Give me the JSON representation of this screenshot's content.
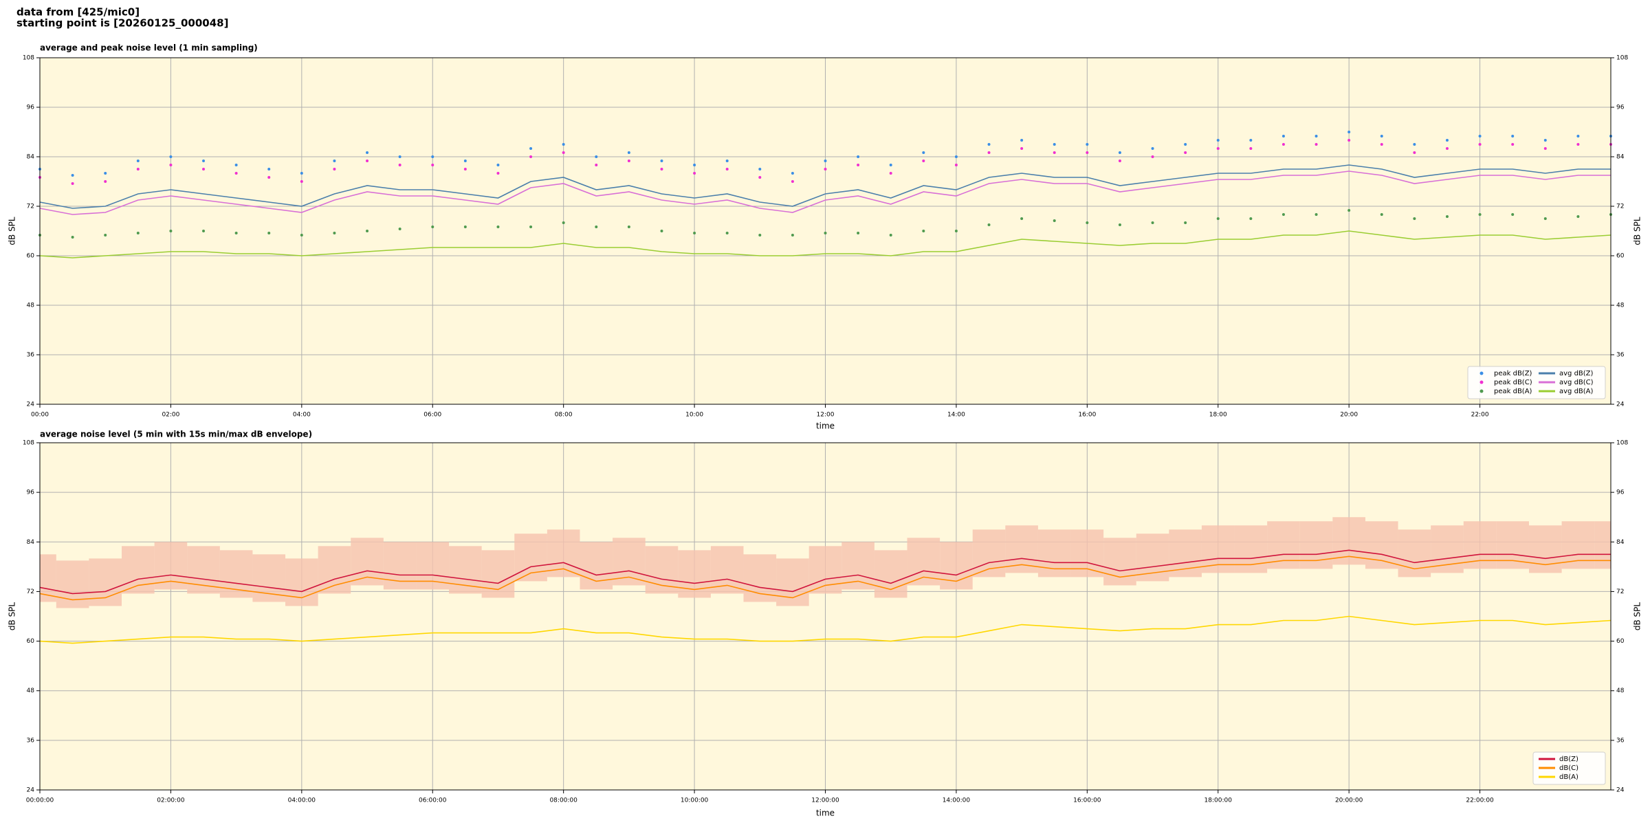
{
  "header": {
    "lines": [
      "data from [425/mic0]",
      "starting point is [20260125_000048]"
    ]
  },
  "chart_data": [
    {
      "type": "line",
      "title": "average and peak noise level (1 min sampling)",
      "x_label": "time",
      "y_label": "dB SPL",
      "x": [
        0,
        0.5,
        1,
        1.5,
        2,
        2.5,
        3,
        3.5,
        4,
        4.5,
        5,
        5.5,
        6,
        6.5,
        7,
        7.5,
        8,
        8.5,
        9,
        9.5,
        10,
        10.5,
        11,
        11.5,
        12,
        12.5,
        13,
        13.5,
        14,
        14.5,
        15,
        15.5,
        16,
        16.5,
        17,
        17.5,
        18,
        18.5,
        19,
        19.5,
        20,
        20.5,
        21,
        21.5,
        22,
        22.5,
        23,
        23.5,
        24
      ],
      "xlim": [
        0,
        24
      ],
      "xticks": [
        {
          "value": 0,
          "label": "00:00"
        },
        {
          "value": 2,
          "label": "02:00"
        },
        {
          "value": 4,
          "label": "04:00"
        },
        {
          "value": 6,
          "label": "06:00"
        },
        {
          "value": 8,
          "label": "08:00"
        },
        {
          "value": 10,
          "label": "10:00"
        },
        {
          "value": 12,
          "label": "12:00"
        },
        {
          "value": 14,
          "label": "14:00"
        },
        {
          "value": 16,
          "label": "16:00"
        },
        {
          "value": 18,
          "label": "18:00"
        },
        {
          "value": 20,
          "label": "20:00"
        },
        {
          "value": 22,
          "label": "22:00"
        }
      ],
      "ylim": [
        24,
        108
      ],
      "yticks": [
        24,
        36,
        48,
        60,
        72,
        84,
        96,
        108
      ],
      "grid": true,
      "legend": "lower right",
      "legend_columns": 2,
      "background": "#fff8dc",
      "series": [
        {
          "name": "peak dB(Z)",
          "kind": "scatter",
          "color": "#3a8ee6",
          "values": [
            81,
            79.5,
            80,
            83,
            84,
            83,
            82,
            81,
            80,
            83,
            85,
            84,
            84,
            83,
            82,
            86,
            87,
            84,
            85,
            83,
            82,
            83,
            81,
            80,
            83,
            84,
            82,
            85,
            84,
            87,
            88,
            87,
            87,
            85,
            86,
            87,
            88,
            88,
            89,
            89,
            90,
            89,
            87,
            88,
            89,
            89,
            88,
            89,
            89
          ]
        },
        {
          "name": "peak dB(C)",
          "kind": "scatter",
          "color": "#f02fd0",
          "values": [
            79,
            77.5,
            78,
            81,
            82,
            81,
            80,
            79,
            78,
            81,
            83,
            82,
            82,
            81,
            80,
            84,
            85,
            82,
            83,
            81,
            80,
            81,
            79,
            78,
            81,
            82,
            80,
            83,
            82,
            85,
            86,
            85,
            85,
            83,
            84,
            85,
            86,
            86,
            87,
            87,
            88,
            87,
            85,
            86,
            87,
            87,
            86,
            87,
            87
          ]
        },
        {
          "name": "peak dB(A)",
          "kind": "scatter",
          "color": "#4f9a4f",
          "values": [
            65,
            64.5,
            65,
            65.5,
            66,
            66,
            65.5,
            65.5,
            65,
            65.5,
            66,
            66.5,
            67,
            67,
            67,
            67,
            68,
            67,
            67,
            66,
            65.5,
            65.5,
            65,
            65,
            65.5,
            65.5,
            65,
            66,
            66,
            67.5,
            69,
            68.5,
            68,
            67.5,
            68,
            68,
            69,
            69,
            70,
            70,
            71,
            70,
            69,
            69.5,
            70,
            70,
            69,
            69.5,
            70
          ]
        },
        {
          "name": "avg dB(Z)",
          "kind": "line",
          "color": "#4a7fab",
          "values": [
            73,
            71.5,
            72,
            75,
            76,
            75,
            74,
            73,
            72,
            75,
            77,
            76,
            76,
            75,
            74,
            78,
            79,
            76,
            77,
            75,
            74,
            75,
            73,
            72,
            75,
            76,
            74,
            77,
            76,
            79,
            80,
            79,
            79,
            77,
            78,
            79,
            80,
            80,
            81,
            81,
            82,
            81,
            79,
            80,
            81,
            81,
            80,
            81,
            81
          ]
        },
        {
          "name": "avg dB(C)",
          "kind": "line",
          "color": "#d86fd6",
          "values": [
            71.5,
            70,
            70.5,
            73.5,
            74.5,
            73.5,
            72.5,
            71.5,
            70.5,
            73.5,
            75.5,
            74.5,
            74.5,
            73.5,
            72.5,
            76.5,
            77.5,
            74.5,
            75.5,
            73.5,
            72.5,
            73.5,
            71.5,
            70.5,
            73.5,
            74.5,
            72.5,
            75.5,
            74.5,
            77.5,
            78.5,
            77.5,
            77.5,
            75.5,
            76.5,
            77.5,
            78.5,
            78.5,
            79.5,
            79.5,
            80.5,
            79.5,
            77.5,
            78.5,
            79.5,
            79.5,
            78.5,
            79.5,
            79.5
          ]
        },
        {
          "name": "avg dB(A)",
          "kind": "line",
          "color": "#9acd32",
          "values": [
            60,
            59.5,
            60,
            60.5,
            61,
            61,
            60.5,
            60.5,
            60,
            60.5,
            61,
            61.5,
            62,
            62,
            62,
            62,
            63,
            62,
            62,
            61,
            60.5,
            60.5,
            60,
            60,
            60.5,
            60.5,
            60,
            61,
            61,
            62.5,
            64,
            63.5,
            63,
            62.5,
            63,
            63,
            64,
            64,
            65,
            65,
            66,
            65,
            64,
            64.5,
            65,
            65,
            64,
            64.5,
            65
          ]
        }
      ]
    },
    {
      "type": "line",
      "title": "average noise level (5 min with 15s min/max dB envelope)",
      "x_label": "time",
      "y_label": "dB SPL",
      "x": [
        0,
        0.5,
        1,
        1.5,
        2,
        2.5,
        3,
        3.5,
        4,
        4.5,
        5,
        5.5,
        6,
        6.5,
        7,
        7.5,
        8,
        8.5,
        9,
        9.5,
        10,
        10.5,
        11,
        11.5,
        12,
        12.5,
        13,
        13.5,
        14,
        14.5,
        15,
        15.5,
        16,
        16.5,
        17,
        17.5,
        18,
        18.5,
        19,
        19.5,
        20,
        20.5,
        21,
        21.5,
        22,
        22.5,
        23,
        23.5,
        24
      ],
      "xlim": [
        0,
        24
      ],
      "xticks": [
        {
          "value": 0,
          "label": "00:00:00"
        },
        {
          "value": 2,
          "label": "02:00:00"
        },
        {
          "value": 4,
          "label": "04:00:00"
        },
        {
          "value": 6,
          "label": "06:00:00"
        },
        {
          "value": 8,
          "label": "08:00:00"
        },
        {
          "value": 10,
          "label": "10:00:00"
        },
        {
          "value": 12,
          "label": "12:00:00"
        },
        {
          "value": 14,
          "label": "14:00:00"
        },
        {
          "value": 16,
          "label": "16:00:00"
        },
        {
          "value": 18,
          "label": "18:00:00"
        },
        {
          "value": 20,
          "label": "20:00:00"
        },
        {
          "value": 22,
          "label": "22:00:00"
        }
      ],
      "ylim": [
        24,
        108
      ],
      "yticks": [
        24,
        36,
        48,
        60,
        72,
        84,
        96,
        108
      ],
      "grid": true,
      "legend": "lower right",
      "legend_columns": 1,
      "background": "#fff8dc",
      "envelope": {
        "color": "#f6c2ae",
        "lower": [
          69.5,
          68,
          68.5,
          71.5,
          72.5,
          71.5,
          70.5,
          69.5,
          68.5,
          71.5,
          73.5,
          72.5,
          72.5,
          71.5,
          70.5,
          74.5,
          75.5,
          72.5,
          73.5,
          71.5,
          70.5,
          71.5,
          69.5,
          68.5,
          71.5,
          72.5,
          70.5,
          73.5,
          72.5,
          75.5,
          76.5,
          75.5,
          75.5,
          73.5,
          74.5,
          75.5,
          76.5,
          76.5,
          77.5,
          77.5,
          78.5,
          77.5,
          75.5,
          76.5,
          77.5,
          77.5,
          76.5,
          77.5,
          77.5
        ],
        "upper": [
          81,
          79.5,
          80,
          83,
          84,
          83,
          82,
          81,
          80,
          83,
          85,
          84,
          84,
          83,
          82,
          86,
          87,
          84,
          85,
          83,
          82,
          83,
          81,
          80,
          83,
          84,
          82,
          85,
          84,
          87,
          88,
          87,
          87,
          85,
          86,
          87,
          88,
          88,
          89,
          89,
          90,
          89,
          87,
          88,
          89,
          89,
          88,
          89,
          89
        ]
      },
      "series": [
        {
          "name": "dB(Z)",
          "kind": "line",
          "color": "#d0143c",
          "values": [
            73,
            71.5,
            72,
            75,
            76,
            75,
            74,
            73,
            72,
            75,
            77,
            76,
            76,
            75,
            74,
            78,
            79,
            76,
            77,
            75,
            74,
            75,
            73,
            72,
            75,
            76,
            74,
            77,
            76,
            79,
            80,
            79,
            79,
            77,
            78,
            79,
            80,
            80,
            81,
            81,
            82,
            81,
            79,
            80,
            81,
            81,
            80,
            81,
            81
          ]
        },
        {
          "name": "dB(C)",
          "kind": "line",
          "color": "#ff8c00",
          "values": [
            71.5,
            70,
            70.5,
            73.5,
            74.5,
            73.5,
            72.5,
            71.5,
            70.5,
            73.5,
            75.5,
            74.5,
            74.5,
            73.5,
            72.5,
            76.5,
            77.5,
            74.5,
            75.5,
            73.5,
            72.5,
            73.5,
            71.5,
            70.5,
            73.5,
            74.5,
            72.5,
            75.5,
            74.5,
            77.5,
            78.5,
            77.5,
            77.5,
            75.5,
            76.5,
            77.5,
            78.5,
            78.5,
            79.5,
            79.5,
            80.5,
            79.5,
            77.5,
            78.5,
            79.5,
            79.5,
            78.5,
            79.5,
            79.5
          ]
        },
        {
          "name": "dB(A)",
          "kind": "line",
          "color": "#ffd700",
          "values": [
            60,
            59.5,
            60,
            60.5,
            61,
            61,
            60.5,
            60.5,
            60,
            60.5,
            61,
            61.5,
            62,
            62,
            62,
            62,
            63,
            62,
            62,
            61,
            60.5,
            60.5,
            60,
            60,
            60.5,
            60.5,
            60,
            61,
            61,
            62.5,
            64,
            63.5,
            63,
            62.5,
            63,
            63,
            64,
            64,
            65,
            65,
            66,
            65,
            64,
            64.5,
            65,
            65,
            64,
            64.5,
            65
          ]
        }
      ]
    }
  ]
}
